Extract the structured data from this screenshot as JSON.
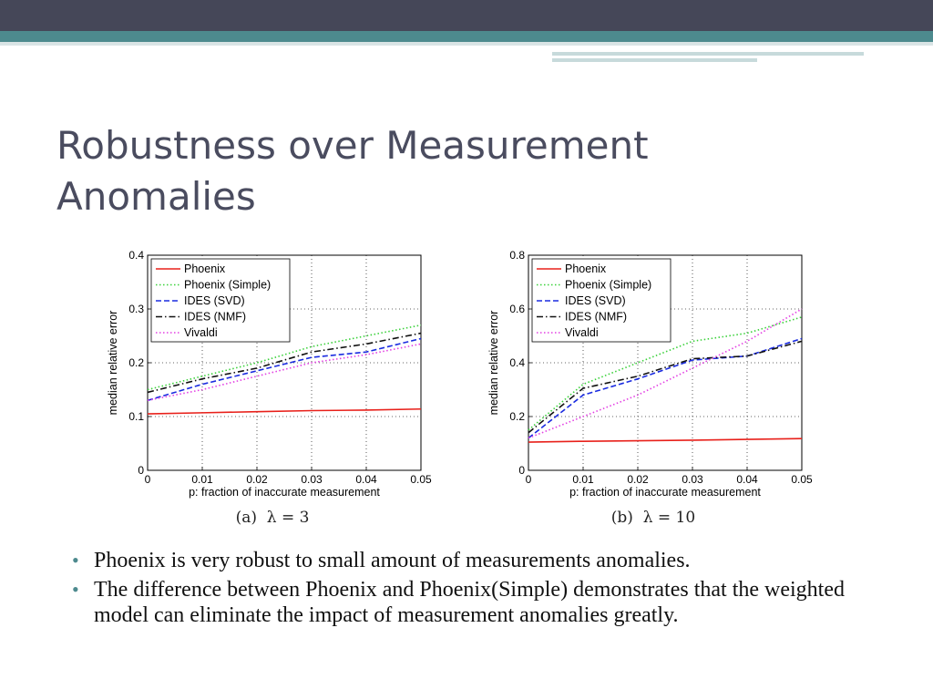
{
  "slide": {
    "title": "Robustness over Measurement Anomalies",
    "bullets": [
      "Phoenix is very robust to small amount of measurements anomalies.",
      "The difference between Phoenix and Phoenix(Simple) demonstrates that the weighted model can eliminate the impact of measurement anomalies greatly."
    ],
    "bullet_color": "#4d8a8e",
    "title_color": "#4a4c5f",
    "header_colors": [
      "#454758",
      "#4d8a8e"
    ]
  },
  "chart_data": [
    {
      "type": "line",
      "caption": "(a)  λ = 3",
      "xlabel": "p: fraction of inaccurate measurement",
      "ylabel": "median relative error",
      "x": [
        0,
        0.01,
        0.02,
        0.03,
        0.04,
        0.05
      ],
      "xticks": [
        "0",
        "0.01",
        "0.02",
        "0.03",
        "0.04",
        "0.05"
      ],
      "yticks": [
        "0",
        "0.1",
        "0.2",
        "0.3",
        "0.4"
      ],
      "xlim": [
        0,
        0.05
      ],
      "ylim": [
        0,
        0.4
      ],
      "grid": true,
      "legend_position": "top-left",
      "series": [
        {
          "name": "Phoenix",
          "color": "#e8201a",
          "dash": "solid",
          "values": [
            0.105,
            0.107,
            0.109,
            0.111,
            0.112,
            0.114
          ]
        },
        {
          "name": "Phoenix (Simple)",
          "color": "#3ad13a",
          "dash": "dotted",
          "values": [
            0.15,
            0.175,
            0.2,
            0.23,
            0.25,
            0.27
          ]
        },
        {
          "name": "IDES (SVD)",
          "color": "#1a2be0",
          "dash": "dashed",
          "values": [
            0.13,
            0.16,
            0.185,
            0.21,
            0.22,
            0.245
          ]
        },
        {
          "name": "IDES (NMF)",
          "color": "#111111",
          "dash": "dashdot",
          "values": [
            0.145,
            0.17,
            0.19,
            0.22,
            0.235,
            0.255
          ]
        },
        {
          "name": "Vivaldi",
          "color": "#e33fe3",
          "dash": "dotted",
          "values": [
            0.13,
            0.15,
            0.175,
            0.2,
            0.215,
            0.235
          ]
        }
      ]
    },
    {
      "type": "line",
      "caption": "(b)  λ = 10",
      "xlabel": "p: fraction of inaccurate measurement",
      "ylabel": "median relative error",
      "x": [
        0,
        0.01,
        0.02,
        0.03,
        0.04,
        0.05
      ],
      "xticks": [
        "0",
        "0.01",
        "0.02",
        "0.03",
        "0.04",
        "0.05"
      ],
      "yticks": [
        "0",
        "0.2",
        "0.4",
        "0.6",
        "0.8"
      ],
      "xlim": [
        0,
        0.05
      ],
      "ylim": [
        0,
        0.8
      ],
      "grid": true,
      "legend_position": "top-left",
      "series": [
        {
          "name": "Phoenix",
          "color": "#e8201a",
          "dash": "solid",
          "values": [
            0.105,
            0.108,
            0.11,
            0.112,
            0.115,
            0.118
          ]
        },
        {
          "name": "Phoenix (Simple)",
          "color": "#3ad13a",
          "dash": "dotted",
          "values": [
            0.15,
            0.32,
            0.4,
            0.48,
            0.51,
            0.57
          ]
        },
        {
          "name": "IDES (SVD)",
          "color": "#1a2be0",
          "dash": "dashed",
          "values": [
            0.12,
            0.28,
            0.34,
            0.41,
            0.425,
            0.49
          ]
        },
        {
          "name": "IDES (NMF)",
          "color": "#111111",
          "dash": "dashdot",
          "values": [
            0.14,
            0.305,
            0.35,
            0.415,
            0.425,
            0.48
          ]
        },
        {
          "name": "Vivaldi",
          "color": "#e33fe3",
          "dash": "dotted",
          "values": [
            0.12,
            0.2,
            0.28,
            0.38,
            0.48,
            0.6
          ]
        }
      ]
    }
  ]
}
